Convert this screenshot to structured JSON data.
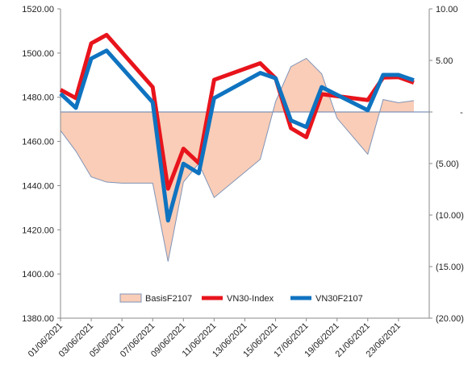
{
  "chart_data": {
    "type": "line",
    "categories": [
      "01/06/2021",
      "02/06/2021",
      "03/06/2021",
      "04/06/2021",
      "07/06/2021",
      "08/06/2021",
      "09/06/2021",
      "10/06/2021",
      "11/06/2021",
      "14/06/2021",
      "15/06/2021",
      "16/06/2021",
      "17/06/2021",
      "18/06/2021",
      "21/06/2021",
      "22/06/2021",
      "23/06/2021",
      "24/06/2021"
    ],
    "x_tick_labels": [
      "01/06/2021",
      "03/06/2021",
      "05/06/2021",
      "07/06/2021",
      "09/06/2021",
      "11/06/2021",
      "13/06/2021",
      "15/06/2021",
      "17/06/2021",
      "19/06/2021",
      "21/06/2021",
      "23/06/2021"
    ],
    "y_left": {
      "min": 1380,
      "max": 1520,
      "ticks": [
        "1380.00",
        "1400.00",
        "1420.00",
        "1440.00",
        "1460.00",
        "1480.00",
        "1500.00",
        "1520.00"
      ]
    },
    "y_right": {
      "min": -20,
      "max": 10,
      "ticks": [
        "10.00",
        "5.00",
        "-",
        "(5.00)",
        "(10.00)",
        "(15.00)",
        "(20.00)"
      ]
    },
    "series": [
      {
        "name": "BasisF2107",
        "kind": "area",
        "axis": "right",
        "color": "#f9cdb7",
        "edge_color": "#8094b8",
        "points": [
          {
            "x": "01/06/2021",
            "y": -1.8
          },
          {
            "x": "02/06/2021",
            "y": -3.8
          },
          {
            "x": "03/06/2021",
            "y": -6.3
          },
          {
            "x": "04/06/2021",
            "y": -6.8
          },
          {
            "x": "05/06/2021",
            "y": -6.9
          },
          {
            "x": "06/06/2021",
            "y": -6.9
          },
          {
            "x": "07/06/2021",
            "y": -6.9
          },
          {
            "x": "08/06/2021",
            "y": -14.5
          },
          {
            "x": "09/06/2021",
            "y": -6.8
          },
          {
            "x": "10/06/2021",
            "y": -5.0
          },
          {
            "x": "11/06/2021",
            "y": -8.3
          },
          {
            "x": "14/06/2021",
            "y": -4.6
          },
          {
            "x": "15/06/2021",
            "y": 1.0
          },
          {
            "x": "16/06/2021",
            "y": 4.4
          },
          {
            "x": "17/06/2021",
            "y": 5.2
          },
          {
            "x": "18/06/2021",
            "y": 3.7
          },
          {
            "x": "19/06/2021",
            "y": -0.6
          },
          {
            "x": "21/06/2021",
            "y": -4.1
          },
          {
            "x": "22/06/2021",
            "y": 1.2
          },
          {
            "x": "23/06/2021",
            "y": 0.9
          },
          {
            "x": "24/06/2021",
            "y": 1.1
          }
        ]
      },
      {
        "name": "VN30-Index",
        "kind": "line",
        "axis": "left",
        "color": "#e8141c",
        "points": [
          {
            "x": "01/06/2021",
            "y": 1483.4
          },
          {
            "x": "02/06/2021",
            "y": 1479.6
          },
          {
            "x": "03/06/2021",
            "y": 1504.4
          },
          {
            "x": "04/06/2021",
            "y": 1508.2
          },
          {
            "x": "07/06/2021",
            "y": 1484.6
          },
          {
            "x": "08/06/2021",
            "y": 1438.6
          },
          {
            "x": "09/06/2021",
            "y": 1456.7
          },
          {
            "x": "10/06/2021",
            "y": 1450.2
          },
          {
            "x": "11/06/2021",
            "y": 1487.9
          },
          {
            "x": "14/06/2021",
            "y": 1495.4
          },
          {
            "x": "15/06/2021",
            "y": 1488.6
          },
          {
            "x": "16/06/2021",
            "y": 1466.0
          },
          {
            "x": "17/06/2021",
            "y": 1461.9
          },
          {
            "x": "18/06/2021",
            "y": 1481.4
          },
          {
            "x": "21/06/2021",
            "y": 1478.7
          },
          {
            "x": "22/06/2021",
            "y": 1488.9
          },
          {
            "x": "23/06/2021",
            "y": 1489.1
          },
          {
            "x": "24/06/2021",
            "y": 1486.6
          }
        ]
      },
      {
        "name": "VN30F2107",
        "kind": "line",
        "axis": "left",
        "color": "#0f73c0",
        "points": [
          {
            "x": "01/06/2021",
            "y": 1481.6
          },
          {
            "x": "02/06/2021",
            "y": 1475.2
          },
          {
            "x": "03/06/2021",
            "y": 1497.5
          },
          {
            "x": "04/06/2021",
            "y": 1501.1
          },
          {
            "x": "07/06/2021",
            "y": 1477.7
          },
          {
            "x": "08/06/2021",
            "y": 1424.2
          },
          {
            "x": "09/06/2021",
            "y": 1449.9
          },
          {
            "x": "10/06/2021",
            "y": 1445.6
          },
          {
            "x": "11/06/2021",
            "y": 1479.6
          },
          {
            "x": "14/06/2021",
            "y": 1491.0
          },
          {
            "x": "15/06/2021",
            "y": 1488.6
          },
          {
            "x": "16/06/2021",
            "y": 1469.5
          },
          {
            "x": "17/06/2021",
            "y": 1466.5
          },
          {
            "x": "18/06/2021",
            "y": 1484.6
          },
          {
            "x": "21/06/2021",
            "y": 1474.1
          },
          {
            "x": "22/06/2021",
            "y": 1490.1
          },
          {
            "x": "23/06/2021",
            "y": 1490.1
          },
          {
            "x": "24/06/2021",
            "y": 1487.7
          }
        ]
      }
    ],
    "legend": {
      "position": "bottom-inside",
      "items": [
        "BasisF2107",
        "VN30-Index",
        "VN30F2107"
      ]
    },
    "grid": false
  }
}
